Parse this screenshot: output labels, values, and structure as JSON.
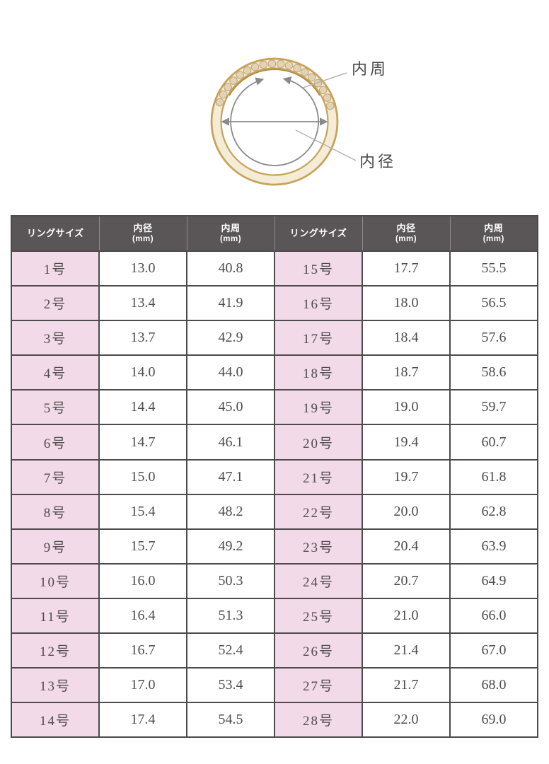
{
  "diagram": {
    "labels": {
      "inner_circumference": "内周",
      "inner_diameter": "内径"
    },
    "colors": {
      "gold": "#c7a358",
      "band_fill": "#f4ecd6",
      "band_shade": "#a8853f",
      "gem_fill": "#e3d3b4",
      "gem_edge": "#bfa477",
      "arrow": "#8a8a8a",
      "callout_line": "#b5b3b3",
      "label_text": "#4c4849"
    }
  },
  "table": {
    "header": [
      {
        "label": "リングサイズ",
        "sub": ""
      },
      {
        "label": "内径",
        "sub": "(mm)"
      },
      {
        "label": "内周",
        "sub": "(mm)"
      },
      {
        "label": "リングサイズ",
        "sub": ""
      },
      {
        "label": "内径",
        "sub": "(mm)"
      },
      {
        "label": "内周",
        "sub": "(mm)"
      }
    ],
    "colors": {
      "header_bg": "#5a5657",
      "header_text": "#ffffff",
      "size_cell_bg": "#f2dae8",
      "border": "#4e4b4c",
      "cell_text": "#4e4c4d"
    }
  },
  "chart_data": {
    "type": "table",
    "title": "",
    "columns": [
      "リングサイズ",
      "内径(mm)",
      "内周(mm)",
      "リングサイズ",
      "内径(mm)",
      "内周(mm)"
    ],
    "rows": [
      [
        "1号",
        "13.0",
        "40.8",
        "15号",
        "17.7",
        "55.5"
      ],
      [
        "2号",
        "13.4",
        "41.9",
        "16号",
        "18.0",
        "56.5"
      ],
      [
        "3号",
        "13.7",
        "42.9",
        "17号",
        "18.4",
        "57.6"
      ],
      [
        "4号",
        "14.0",
        "44.0",
        "18号",
        "18.7",
        "58.6"
      ],
      [
        "5号",
        "14.4",
        "45.0",
        "19号",
        "19.0",
        "59.7"
      ],
      [
        "6号",
        "14.7",
        "46.1",
        "20号",
        "19.4",
        "60.7"
      ],
      [
        "7号",
        "15.0",
        "47.1",
        "21号",
        "19.7",
        "61.8"
      ],
      [
        "8号",
        "15.4",
        "48.2",
        "22号",
        "20.0",
        "62.8"
      ],
      [
        "9号",
        "15.7",
        "49.2",
        "23号",
        "20.4",
        "63.9"
      ],
      [
        "10号",
        "16.0",
        "50.3",
        "24号",
        "20.7",
        "64.9"
      ],
      [
        "11号",
        "16.4",
        "51.3",
        "25号",
        "21.0",
        "66.0"
      ],
      [
        "12号",
        "16.7",
        "52.4",
        "26号",
        "21.4",
        "67.0"
      ],
      [
        "13号",
        "17.0",
        "53.4",
        "27号",
        "21.7",
        "68.0"
      ],
      [
        "14号",
        "17.4",
        "54.5",
        "28号",
        "22.0",
        "69.0"
      ]
    ]
  }
}
